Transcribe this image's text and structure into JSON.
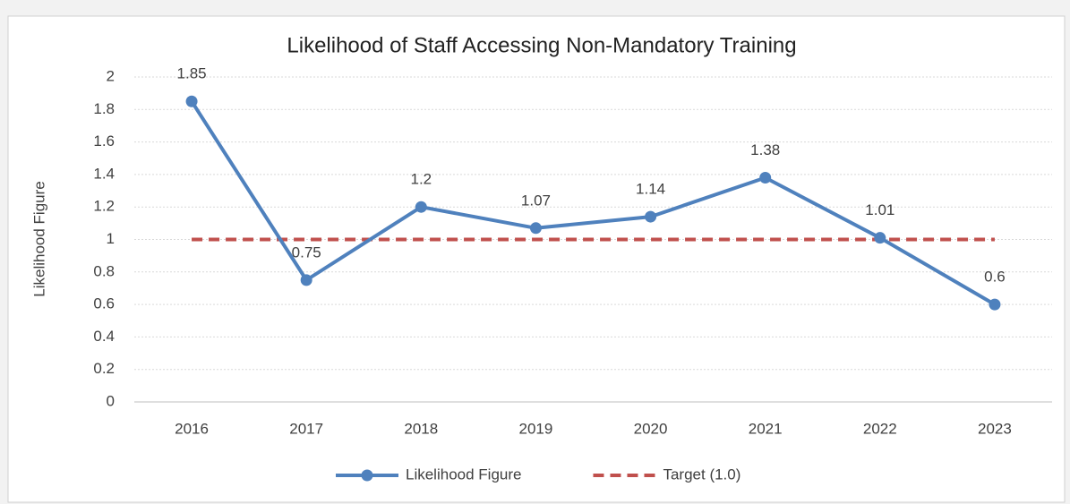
{
  "chart_data": {
    "type": "line",
    "title": "Likelihood of Staff Accessing Non-Mandatory Training",
    "ylabel": "Likelihood Figure",
    "categories": [
      "2016",
      "2017",
      "2018",
      "2019",
      "2020",
      "2021",
      "2022",
      "2023"
    ],
    "series": [
      {
        "name": "Likelihood Figure",
        "color": "#4f81bd",
        "line_style": "solid",
        "markers": true,
        "data_labels": true,
        "values": [
          1.85,
          0.75,
          1.2,
          1.07,
          1.14,
          1.38,
          1.01,
          0.6
        ]
      },
      {
        "name": "Target (1.0)",
        "color": "#c0504d",
        "line_style": "dashed",
        "markers": false,
        "data_labels": false,
        "values": [
          1,
          1,
          1,
          1,
          1,
          1,
          1,
          1
        ]
      }
    ],
    "ylim": [
      0,
      2
    ],
    "yticks": [
      0,
      0.2,
      0.4,
      0.6,
      0.8,
      1,
      1.2,
      1.4,
      1.6,
      1.8,
      2
    ],
    "grid": true,
    "legend": "bottom"
  }
}
